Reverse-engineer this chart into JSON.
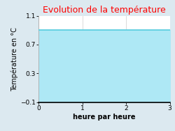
{
  "title": "Evolution de la température",
  "title_color": "#ff0000",
  "xlabel": "heure par heure",
  "ylabel": "Température en °C",
  "xlim": [
    0,
    3
  ],
  "ylim": [
    -0.1,
    1.1
  ],
  "yticks": [
    -0.1,
    0.3,
    0.7,
    1.1
  ],
  "xticks": [
    0,
    1,
    2,
    3
  ],
  "line_y": 0.9,
  "line_color": "#55ccdd",
  "fill_color": "#aee8f5",
  "background_color": "#dce9f0",
  "plot_bg_color": "#ffffff",
  "title_fontsize": 9,
  "label_fontsize": 7,
  "tick_fontsize": 6.5
}
